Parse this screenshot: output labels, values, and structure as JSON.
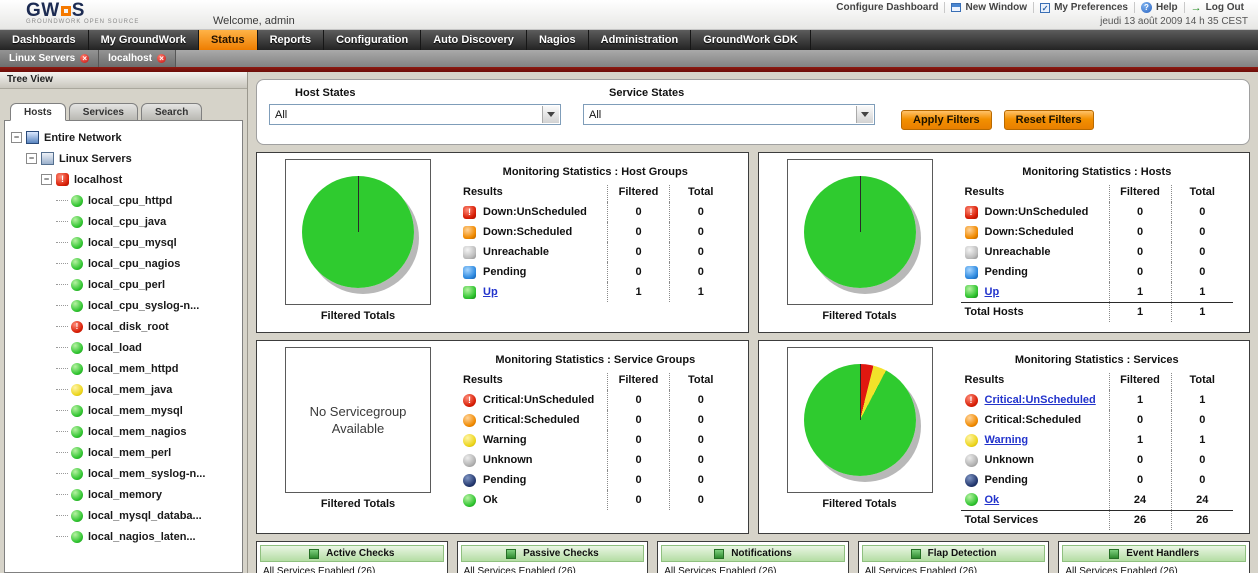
{
  "header": {
    "logo_prefix": "GW",
    "logo_suffix": "S",
    "logo_sub": "GROUNDWORK OPEN SOURCE",
    "welcome": "Welcome, admin",
    "menu": [
      {
        "label": "Configure Dashboard",
        "icon": null
      },
      {
        "label": "New Window",
        "icon": "new-window"
      },
      {
        "label": "My Preferences",
        "icon": "preferences"
      },
      {
        "label": "Help",
        "icon": "help"
      },
      {
        "label": "Log Out",
        "icon": "logout"
      }
    ],
    "datetime": "jeudi 13 août 2009 14 h 35 CEST"
  },
  "nav": {
    "items": [
      {
        "label": "Dashboards",
        "active": false
      },
      {
        "label": "My GroundWork",
        "active": false
      },
      {
        "label": "Status",
        "active": true
      },
      {
        "label": "Reports",
        "active": false
      },
      {
        "label": "Configuration",
        "active": false
      },
      {
        "label": "Auto Discovery",
        "active": false
      },
      {
        "label": "Nagios",
        "active": false
      },
      {
        "label": "Administration",
        "active": false
      },
      {
        "label": "GroundWork GDK",
        "active": false
      }
    ]
  },
  "subtabs": [
    {
      "label": "Linux Servers"
    },
    {
      "label": "localhost"
    }
  ],
  "sidebar": {
    "title": "Tree View",
    "tabs": [
      {
        "label": "Hosts",
        "active": true
      },
      {
        "label": "Services",
        "active": false
      },
      {
        "label": "Search",
        "active": false
      }
    ],
    "tree": [
      {
        "label": "Entire Network",
        "level": 0,
        "icon": "network",
        "expander": true
      },
      {
        "label": "Linux Servers",
        "level": 1,
        "icon": "hostgroup",
        "expander": true
      },
      {
        "label": "localhost",
        "level": 2,
        "icon": "host-critical",
        "expander": true
      },
      {
        "label": "local_cpu_httpd",
        "level": 3,
        "icon": "service",
        "status": "ok"
      },
      {
        "label": "local_cpu_java",
        "level": 3,
        "icon": "service",
        "status": "ok"
      },
      {
        "label": "local_cpu_mysql",
        "level": 3,
        "icon": "service",
        "status": "ok"
      },
      {
        "label": "local_cpu_nagios",
        "level": 3,
        "icon": "service",
        "status": "ok"
      },
      {
        "label": "local_cpu_perl",
        "level": 3,
        "icon": "service",
        "status": "ok"
      },
      {
        "label": "local_cpu_syslog-n...",
        "level": 3,
        "icon": "service",
        "status": "ok"
      },
      {
        "label": "local_disk_root",
        "level": 3,
        "icon": "service",
        "status": "critical"
      },
      {
        "label": "local_load",
        "level": 3,
        "icon": "service",
        "status": "ok"
      },
      {
        "label": "local_mem_httpd",
        "level": 3,
        "icon": "service",
        "status": "ok"
      },
      {
        "label": "local_mem_java",
        "level": 3,
        "icon": "service",
        "status": "warning"
      },
      {
        "label": "local_mem_mysql",
        "level": 3,
        "icon": "service",
        "status": "ok"
      },
      {
        "label": "local_mem_nagios",
        "level": 3,
        "icon": "service",
        "status": "ok"
      },
      {
        "label": "local_mem_perl",
        "level": 3,
        "icon": "service",
        "status": "ok"
      },
      {
        "label": "local_mem_syslog-n...",
        "level": 3,
        "icon": "service",
        "status": "ok"
      },
      {
        "label": "local_memory",
        "level": 3,
        "icon": "service",
        "status": "ok"
      },
      {
        "label": "local_mysql_databa...",
        "level": 3,
        "icon": "service",
        "status": "ok"
      },
      {
        "label": "local_nagios_laten...",
        "level": 3,
        "icon": "service",
        "status": "ok"
      }
    ]
  },
  "filters": {
    "host_states_label": "Host States",
    "host_states_value": "All",
    "service_states_label": "Service States",
    "service_states_value": "All",
    "apply_label": "Apply Filters",
    "reset_label": "Reset Filters"
  },
  "stat_panels": [
    {
      "title": "Monitoring Statistics : Host Groups",
      "columns": [
        "Results",
        "Filtered",
        "Total"
      ],
      "footer": "Filtered Totals",
      "icon_shape": "square",
      "chart": {
        "type": "pie",
        "slices": [
          {
            "label": "Up",
            "value": 1,
            "color": "#2fcb2f"
          }
        ]
      },
      "rows": [
        {
          "status": "down-unscheduled",
          "label": "Down:UnScheduled",
          "filtered": "0",
          "total": "0",
          "link": false
        },
        {
          "status": "down-scheduled",
          "label": "Down:Scheduled",
          "filtered": "0",
          "total": "0",
          "link": false
        },
        {
          "status": "unreachable",
          "label": "Unreachable",
          "filtered": "0",
          "total": "0",
          "link": false
        },
        {
          "status": "pending-host",
          "label": "Pending",
          "filtered": "0",
          "total": "0",
          "link": false
        },
        {
          "status": "up",
          "label": "Up",
          "filtered": "1",
          "total": "1",
          "link": true
        }
      ],
      "total_row": null
    },
    {
      "title": "Monitoring Statistics : Hosts",
      "columns": [
        "Results",
        "Filtered",
        "Total"
      ],
      "footer": "Filtered Totals",
      "icon_shape": "square",
      "chart": {
        "type": "pie",
        "slices": [
          {
            "label": "Up",
            "value": 1,
            "color": "#2fcb2f"
          }
        ]
      },
      "rows": [
        {
          "status": "down-unscheduled",
          "label": "Down:UnScheduled",
          "filtered": "0",
          "total": "0",
          "link": false
        },
        {
          "status": "down-scheduled",
          "label": "Down:Scheduled",
          "filtered": "0",
          "total": "0",
          "link": false
        },
        {
          "status": "unreachable",
          "label": "Unreachable",
          "filtered": "0",
          "total": "0",
          "link": false
        },
        {
          "status": "pending-host",
          "label": "Pending",
          "filtered": "0",
          "total": "0",
          "link": false
        },
        {
          "status": "up",
          "label": "Up",
          "filtered": "1",
          "total": "1",
          "link": true
        }
      ],
      "total_row": {
        "label": "Total Hosts",
        "filtered": "1",
        "total": "1"
      }
    },
    {
      "title": "Monitoring Statistics : Service Groups",
      "columns": [
        "Results",
        "Filtered",
        "Total"
      ],
      "footer": "Filtered Totals",
      "icon_shape": "circle",
      "chart": {
        "type": "none",
        "message": "No Servicegroup Available"
      },
      "rows": [
        {
          "status": "critical",
          "label": "Critical:UnScheduled",
          "filtered": "0",
          "total": "0",
          "link": false
        },
        {
          "status": "critical-scheduled",
          "label": "Critical:Scheduled",
          "filtered": "0",
          "total": "0",
          "link": false
        },
        {
          "status": "warning",
          "label": "Warning",
          "filtered": "0",
          "total": "0",
          "link": false
        },
        {
          "status": "unknown",
          "label": "Unknown",
          "filtered": "0",
          "total": "0",
          "link": false
        },
        {
          "status": "pending-service",
          "label": "Pending",
          "filtered": "0",
          "total": "0",
          "link": false
        },
        {
          "status": "ok",
          "label": "Ok",
          "filtered": "0",
          "total": "0",
          "link": false
        }
      ],
      "total_row": null
    },
    {
      "title": "Monitoring Statistics : Services",
      "columns": [
        "Results",
        "Filtered",
        "Total"
      ],
      "footer": "Filtered Totals",
      "icon_shape": "circle",
      "chart": {
        "type": "pie",
        "slices": [
          {
            "label": "Critical",
            "value": 1,
            "color": "#e01810"
          },
          {
            "label": "Warning",
            "value": 1,
            "color": "#f2e22a"
          },
          {
            "label": "Ok",
            "value": 24,
            "color": "#2fcb2f"
          }
        ]
      },
      "rows": [
        {
          "status": "critical",
          "label": "Critical:UnScheduled",
          "filtered": "1",
          "total": "1",
          "link": true
        },
        {
          "status": "critical-scheduled",
          "label": "Critical:Scheduled",
          "filtered": "0",
          "total": "0",
          "link": false
        },
        {
          "status": "warning",
          "label": "Warning",
          "filtered": "1",
          "total": "1",
          "link": true
        },
        {
          "status": "unknown",
          "label": "Unknown",
          "filtered": "0",
          "total": "0",
          "link": false
        },
        {
          "status": "pending-service",
          "label": "Pending",
          "filtered": "0",
          "total": "0",
          "link": false
        },
        {
          "status": "ok",
          "label": "Ok",
          "filtered": "24",
          "total": "24",
          "link": true
        }
      ],
      "total_row": {
        "label": "Total Services",
        "filtered": "26",
        "total": "26"
      }
    }
  ],
  "bottom_panels": [
    {
      "title": "Active Checks",
      "text": "All Services Enabled (26)"
    },
    {
      "title": "Passive Checks",
      "text": "All Services Enabled (26)"
    },
    {
      "title": "Notifications",
      "text": "All Services Enabled (26)"
    },
    {
      "title": "Flap Detection",
      "text": "All Services Enabled (26)"
    },
    {
      "title": "Event Handlers",
      "text": "All Services Enabled (26)"
    }
  ]
}
